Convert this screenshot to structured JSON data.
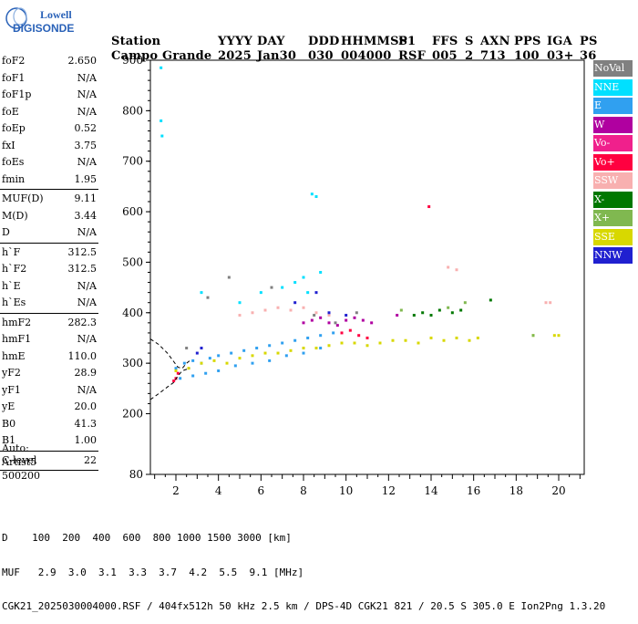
{
  "logo": {
    "line1": "Lowell",
    "line2": "DIGISONDE"
  },
  "header": {
    "row1": [
      "Station",
      "YYYY",
      "DAY",
      "DDD",
      "HHMMSS",
      "P1",
      "FFS",
      "S",
      "AXN",
      "PPS",
      "IGA",
      "PS"
    ],
    "row2": [
      "Campo Grande",
      "2025",
      "Jan30",
      "030",
      "004000",
      "RSF",
      "005",
      "2",
      "713",
      "100",
      "03+",
      "36"
    ]
  },
  "params": {
    "group1": [
      {
        "name": "foF2",
        "value": "2.650"
      },
      {
        "name": "foF1",
        "value": "N/A"
      },
      {
        "name": "foF1p",
        "value": "N/A"
      },
      {
        "name": "foE",
        "value": "N/A"
      },
      {
        "name": "foEp",
        "value": "0.52"
      },
      {
        "name": "fxI",
        "value": "3.75"
      },
      {
        "name": "foEs",
        "value": "N/A"
      },
      {
        "name": "fmin",
        "value": "1.95"
      }
    ],
    "group2": [
      {
        "name": "MUF(D)",
        "value": "9.11"
      },
      {
        "name": "M(D)",
        "value": "3.44"
      },
      {
        "name": "D",
        "value": "N/A"
      }
    ],
    "group3": [
      {
        "name": "h`F",
        "value": "312.5"
      },
      {
        "name": "h`F2",
        "value": "312.5"
      },
      {
        "name": "h`E",
        "value": "N/A"
      },
      {
        "name": "h`Es",
        "value": "N/A"
      }
    ],
    "group4": [
      {
        "name": "hmF2",
        "value": "282.3"
      },
      {
        "name": "hmF1",
        "value": "N/A"
      },
      {
        "name": "hmE",
        "value": "110.0"
      },
      {
        "name": "yF2",
        "value": "28.9"
      },
      {
        "name": "yF1",
        "value": "N/A"
      },
      {
        "name": "yE",
        "value": "20.0"
      },
      {
        "name": "B0",
        "value": "41.3"
      },
      {
        "name": "B1",
        "value": "1.00"
      }
    ],
    "group5": [
      {
        "name": "C-level",
        "value": "22"
      }
    ]
  },
  "auto": {
    "line1": "Auto:",
    "line2": "Artist5",
    "line3": "500200"
  },
  "legend": [
    {
      "label": "NoVal",
      "color": "#808080"
    },
    {
      "label": "NNE",
      "color": "#00e0ff"
    },
    {
      "label": "E",
      "color": "#30a0f0"
    },
    {
      "label": "W",
      "color": "#b000a0"
    },
    {
      "label": "Vo-",
      "color": "#f0208c"
    },
    {
      "label": "Vo+",
      "color": "#ff0040"
    },
    {
      "label": "SSW",
      "color": "#f8b0b0"
    },
    {
      "label": "X-",
      "color": "#007800"
    },
    {
      "label": "X+",
      "color": "#80b850"
    },
    {
      "label": "SSE",
      "color": "#d8d800"
    },
    {
      "label": "NNW",
      "color": "#2020d0"
    }
  ],
  "chart_data": {
    "type": "scatter",
    "xlim": [
      0.8,
      21.2
    ],
    "ylim": [
      80,
      900
    ],
    "xticks": [
      "2",
      "4",
      "6",
      "8",
      "10",
      "12",
      "14",
      "16",
      "18",
      "20"
    ],
    "yticks": [
      "80",
      "200",
      "300",
      "400",
      "500",
      "600",
      "700",
      "800",
      "900"
    ],
    "series": [
      {
        "name": "E",
        "color": "#30a0f0",
        "x": [
          2.0,
          2.4,
          2.8,
          3.2,
          3.6,
          4.0,
          4.6,
          5.2,
          5.8,
          6.4,
          7.0,
          7.6,
          8.2,
          8.8,
          9.4,
          2.2,
          2.8,
          3.4,
          4.0,
          4.8,
          5.6,
          6.4,
          7.2,
          8.0,
          8.8
        ],
        "y": [
          290,
          300,
          305,
          300,
          310,
          315,
          320,
          325,
          330,
          335,
          340,
          345,
          350,
          355,
          360,
          270,
          275,
          280,
          285,
          295,
          300,
          305,
          315,
          320,
          330
        ]
      },
      {
        "name": "SSE",
        "color": "#d8d800",
        "x": [
          2.0,
          2.6,
          3.2,
          3.8,
          4.4,
          5.0,
          5.6,
          6.2,
          6.8,
          7.4,
          8.0,
          8.6,
          9.2,
          9.8,
          10.4,
          11.0,
          11.6,
          12.2,
          12.8,
          13.4,
          14.0,
          14.6,
          15.2,
          15.8,
          16.2,
          18.8,
          19.8,
          20.0
        ],
        "y": [
          285,
          290,
          300,
          305,
          300,
          310,
          315,
          320,
          320,
          325,
          330,
          330,
          335,
          340,
          340,
          335,
          340,
          345,
          345,
          340,
          350,
          345,
          350,
          345,
          350,
          355,
          355,
          355
        ]
      },
      {
        "name": "NNE",
        "color": "#00e0ff",
        "x": [
          1.3,
          1.3,
          1.35,
          3.2,
          5.0,
          6.0,
          7.0,
          7.6,
          8.0,
          8.2,
          8.4,
          8.6,
          8.8
        ],
        "y": [
          885,
          780,
          750,
          440,
          420,
          440,
          450,
          460,
          470,
          440,
          635,
          630,
          480
        ]
      },
      {
        "name": "SSW",
        "color": "#f8b0b0",
        "x": [
          5.0,
          5.6,
          6.2,
          6.8,
          7.4,
          8.0,
          8.6,
          9.2,
          14.8,
          15.2,
          19.4,
          19.6
        ],
        "y": [
          395,
          400,
          405,
          410,
          405,
          410,
          400,
          395,
          490,
          485,
          420,
          420
        ]
      },
      {
        "name": "W",
        "color": "#b000a0",
        "x": [
          8.0,
          8.4,
          8.8,
          9.2,
          9.6,
          10.0,
          10.4,
          10.8,
          11.2,
          12.4
        ],
        "y": [
          380,
          385,
          390,
          380,
          375,
          385,
          390,
          385,
          380,
          395
        ]
      },
      {
        "name": "Vo+",
        "color": "#ff0040",
        "x": [
          1.9,
          2.0,
          2.1,
          9.8,
          10.2,
          10.6,
          11.0,
          13.9
        ],
        "y": [
          265,
          270,
          280,
          360,
          365,
          355,
          350,
          610
        ]
      },
      {
        "name": "X-",
        "color": "#007800",
        "x": [
          13.2,
          13.6,
          14.0,
          14.4,
          15.0,
          15.4,
          16.8
        ],
        "y": [
          395,
          400,
          395,
          405,
          400,
          405,
          425
        ]
      },
      {
        "name": "X+",
        "color": "#80b850",
        "x": [
          12.6,
          14.8,
          15.6,
          18.8
        ],
        "y": [
          405,
          410,
          420,
          355
        ]
      },
      {
        "name": "NNW",
        "color": "#2020d0",
        "x": [
          3.0,
          3.2,
          7.6,
          8.6,
          9.2,
          10.0
        ],
        "y": [
          320,
          330,
          420,
          440,
          400,
          395
        ]
      },
      {
        "name": "NoVal",
        "color": "#808080",
        "x": [
          2.5,
          3.5,
          4.5,
          6.5,
          8.5,
          9.5,
          10.5
        ],
        "y": [
          330,
          430,
          470,
          450,
          395,
          380,
          400
        ]
      }
    ],
    "profile_curve": {
      "x": [
        0.8,
        1.2,
        1.6,
        1.9,
        2.1,
        2.3,
        2.5,
        2.65
      ],
      "y": [
        348,
        337,
        320,
        303,
        292,
        290,
        300,
        305
      ]
    },
    "trace_curve": {
      "x": [
        0.8,
        1.2,
        1.6,
        1.9,
        2.1,
        2.3,
        2.65
      ],
      "y": [
        228,
        240,
        253,
        262,
        275,
        285,
        290
      ]
    }
  },
  "footer": {
    "line1": "D    100  200  400  600  800 1000 1500 3000 [km]",
    "line2": "MUF   2.9  3.0  3.1  3.3  3.7  4.2  5.5  9.1 [MHz]",
    "line3": "CGK21_2025030004000.RSF / 404fx512h 50 kHz 2.5 km / DPS-4D CGK21 821 / 20.5 S 305.0 E Ion2Png 1.3.20"
  }
}
